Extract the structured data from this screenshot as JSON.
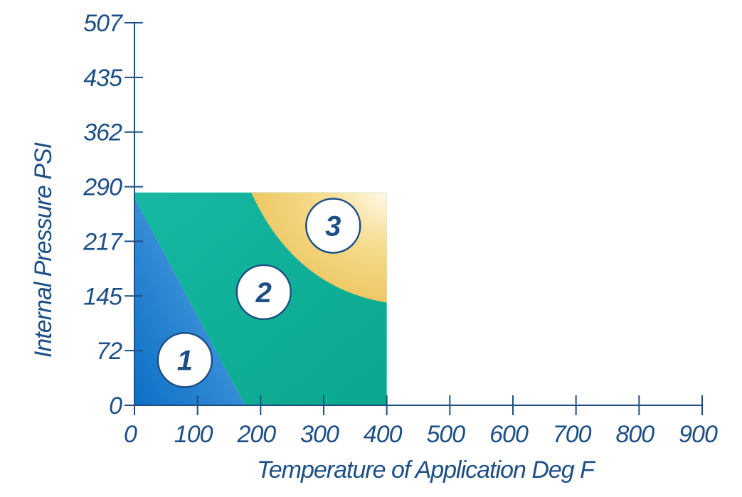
{
  "chart_data": {
    "type": "area",
    "title": "",
    "xlabel": "Temperature of Application Deg F",
    "ylabel": "Internal Pressure PSI",
    "xlim": [
      0,
      900
    ],
    "ylim": [
      0,
      507
    ],
    "x_ticks": [
      "0",
      "100",
      "200",
      "300",
      "400",
      "500",
      "600",
      "700",
      "800",
      "900"
    ],
    "y_ticks": [
      "0",
      "72",
      "145",
      "217",
      "290",
      "362",
      "435",
      "507"
    ],
    "grid": false,
    "colors": {
      "axis": "#1d4f86",
      "zone_1": "#2f86d4",
      "zone_2": "#12b39c",
      "zone_3": "#f2cd6a"
    },
    "zones": [
      {
        "label": "1",
        "polygon": [
          [
            0,
            0
          ],
          [
            0,
            275
          ],
          [
            175,
            0
          ]
        ],
        "label_at": [
          80,
          60
        ]
      },
      {
        "label": "2",
        "polygon": [
          [
            0,
            275
          ],
          [
            0,
            282
          ],
          [
            400,
            282
          ],
          [
            400,
            0
          ],
          [
            175,
            0
          ]
        ],
        "label_at": [
          205,
          150
        ]
      },
      {
        "label": "3",
        "polygon": [
          [
            185,
            282
          ],
          [
            400,
            282
          ],
          [
            400,
            136
          ],
          [
            340,
            152
          ],
          [
            280,
            185
          ],
          [
            230,
            230
          ]
        ],
        "label_at": [
          315,
          238
        ]
      }
    ]
  }
}
